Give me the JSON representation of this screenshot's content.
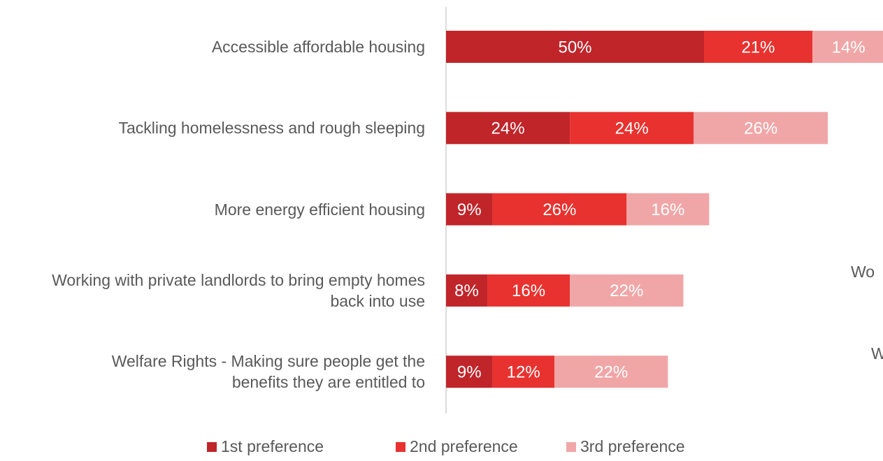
{
  "chart_data": {
    "type": "stacked_bar_horizontal",
    "categories": [
      "Accessible affordable housing",
      "Tackling homelessness and rough sleeping",
      "More energy efficient housing",
      "Working with private landlords to bring empty homes back into use",
      "Welfare Rights - Making sure people get the benefits they are entitled to"
    ],
    "series": [
      {
        "name": "1st preference",
        "color": "#c0252a",
        "values": [
          50,
          24,
          9,
          8,
          9
        ],
        "value_labels": [
          "50%",
          "24%",
          "9%",
          "8%",
          "9%"
        ]
      },
      {
        "name": "2nd preference",
        "color": "#e8322f",
        "values": [
          21,
          24,
          26,
          16,
          12
        ],
        "value_labels": [
          "21%",
          "24%",
          "26%",
          "16%",
          "12%"
        ]
      },
      {
        "name": "3rd preference",
        "color": "#f0a6a7",
        "values": [
          14,
          26,
          16,
          22,
          22
        ],
        "value_labels": [
          "14%",
          "26%",
          "16%",
          "22%",
          "22%"
        ]
      }
    ],
    "annotations": [
      "Wo",
      "W"
    ]
  }
}
